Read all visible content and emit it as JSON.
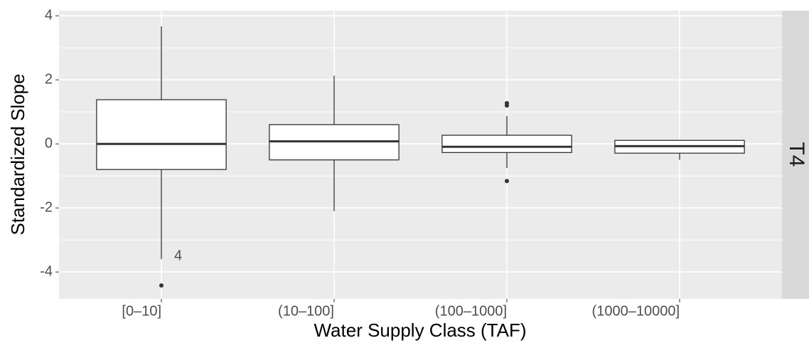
{
  "chart_data": {
    "type": "box",
    "x_label": "Water Supply Class (TAF)",
    "y_label": "Standardized Slope",
    "facet": "T4",
    "categories": [
      "[0–10]",
      "(10–100]",
      "(100–1000]",
      "(1000–10000]"
    ],
    "boxes": [
      {
        "whisker_low": -3.6,
        "q1": -0.8,
        "median": 0,
        "q3": 1.38,
        "whisker_high": 3.67,
        "outliers": [
          -4.42
        ]
      },
      {
        "whisker_low": -2.1,
        "q1": -0.5,
        "median": 0.08,
        "q3": 0.6,
        "whisker_high": 2.13,
        "outliers": []
      },
      {
        "whisker_low": -0.75,
        "q1": -0.27,
        "median": -0.09,
        "q3": 0.27,
        "whisker_high": 0.87,
        "outliers": [
          1.27,
          1.2,
          -1.16
        ]
      },
      {
        "whisker_low": -0.5,
        "q1": -0.29,
        "median": -0.07,
        "q3": 0.11,
        "whisker_high": 0.11,
        "outliers": []
      }
    ],
    "annotations": [
      {
        "text": "4"
      }
    ],
    "ylim": [
      -4.84,
      4.16
    ],
    "yticks": [
      -4,
      -2,
      0,
      2,
      4
    ],
    "minor_yticks": [
      -3,
      -1,
      1,
      3
    ],
    "grid": true
  }
}
